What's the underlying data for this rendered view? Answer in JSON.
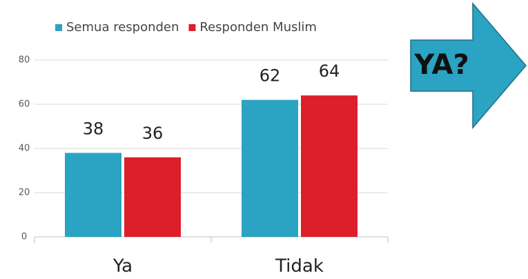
{
  "chart_data": {
    "type": "bar",
    "categories": [
      "Ya",
      "Tidak"
    ],
    "series": [
      {
        "name": "Semua responden",
        "color": "#2ba3c2",
        "values": [
          38,
          62
        ]
      },
      {
        "name": "Responden Muslim",
        "color": "#dc1f2a",
        "values": [
          36,
          64
        ]
      }
    ],
    "ylim": [
      0,
      80
    ],
    "yticks": [
      0,
      20,
      40,
      60,
      80
    ],
    "grid": true,
    "legend": "top",
    "annotation": "YA?"
  }
}
